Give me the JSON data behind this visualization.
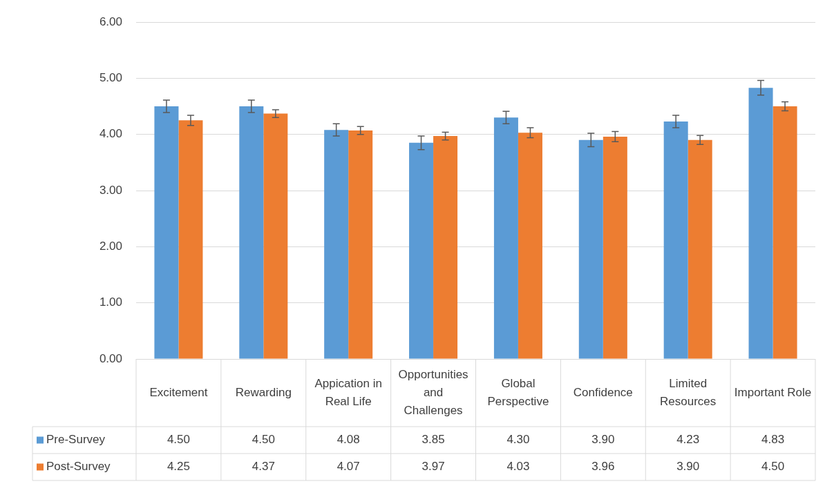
{
  "chart_data": {
    "type": "bar",
    "categories": [
      "Excitement",
      "Rewarding",
      "Appication in Real Life",
      "Opportunities and Challenges",
      "Global Perspective",
      "Confidence",
      "Limited Resources",
      "Important Role"
    ],
    "series": [
      {
        "name": "Pre-Survey",
        "color": "#5b9bd5",
        "values": [
          4.5,
          4.5,
          4.08,
          3.85,
          4.3,
          3.9,
          4.23,
          4.83
        ],
        "errors": [
          0.11,
          0.11,
          0.11,
          0.12,
          0.11,
          0.12,
          0.11,
          0.13
        ],
        "value_labels": [
          "4.50",
          "4.50",
          "4.08",
          "3.85",
          "4.30",
          "3.90",
          "4.23",
          "4.83"
        ]
      },
      {
        "name": "Post-Survey",
        "color": "#ed7d31",
        "values": [
          4.25,
          4.37,
          4.07,
          3.97,
          4.03,
          3.96,
          3.9,
          4.5
        ],
        "errors": [
          0.09,
          0.07,
          0.07,
          0.07,
          0.09,
          0.09,
          0.08,
          0.08
        ],
        "value_labels": [
          "4.25",
          "4.37",
          "4.07",
          "3.97",
          "4.03",
          "3.96",
          "3.90",
          "4.50"
        ]
      }
    ],
    "ylim": [
      0,
      6
    ],
    "yticks": [
      {
        "value": 0,
        "label": "0.00"
      },
      {
        "value": 1,
        "label": "1.00"
      },
      {
        "value": 2,
        "label": "2.00"
      },
      {
        "value": 3,
        "label": "3.00"
      },
      {
        "value": 4,
        "label": "4.00"
      },
      {
        "value": 5,
        "label": "5.00"
      },
      {
        "value": 6,
        "label": "6.00"
      }
    ],
    "grid": "y",
    "legend": "bottom"
  }
}
